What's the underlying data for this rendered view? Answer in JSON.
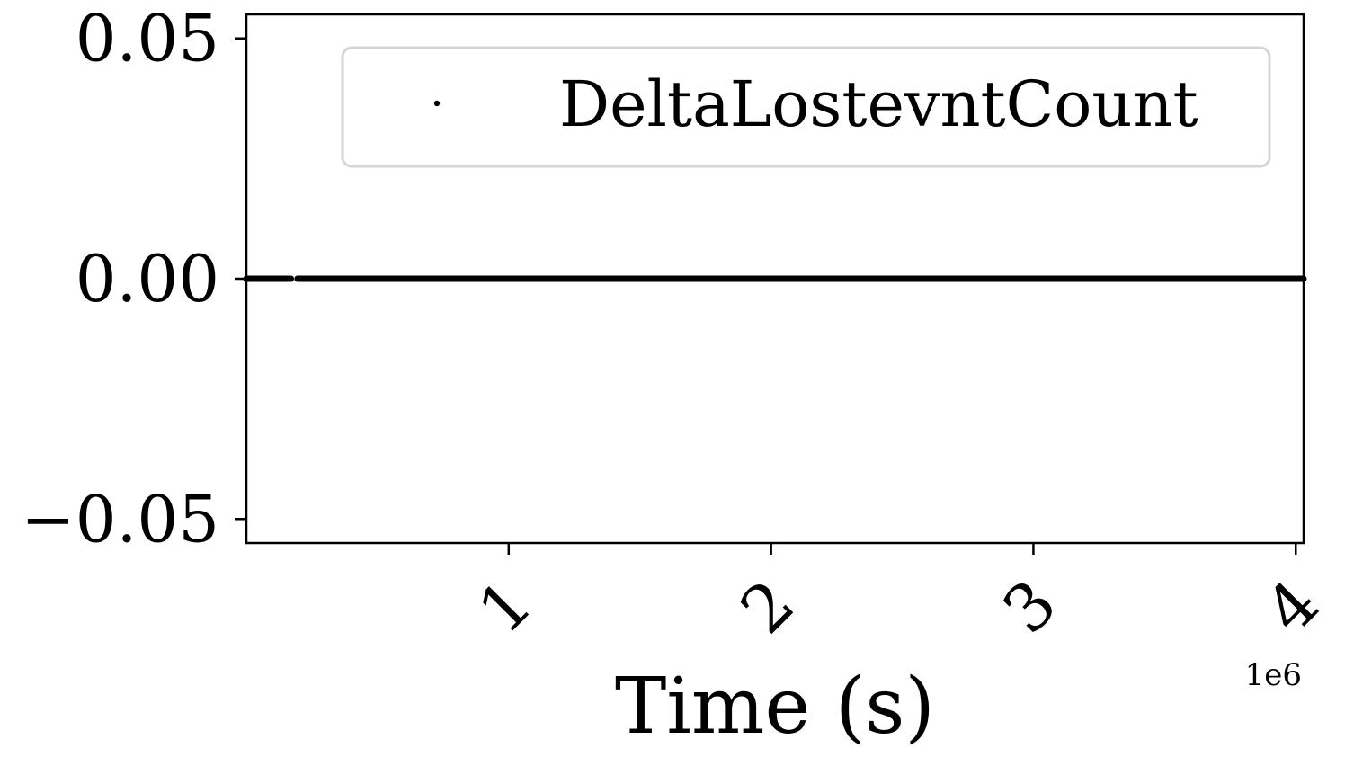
{
  "chart_data": {
    "type": "scatter",
    "title": "",
    "xlabel": "Time (s)",
    "ylabel": "",
    "x_offset_label": "1e6",
    "x_scale_multiplier": 1000000,
    "xlim": [
      0,
      4030000
    ],
    "ylim": [
      -0.055,
      0.055
    ],
    "x_ticks": [
      1,
      2,
      3,
      4
    ],
    "x_tick_labels": [
      "1",
      "2",
      "3",
      "4"
    ],
    "y_ticks": [
      0.05,
      0.0,
      -0.05
    ],
    "y_tick_labels": [
      "0.05",
      "0.00",
      "−0.05"
    ],
    "grid": false,
    "legend_position": "top-right",
    "series": [
      {
        "name": "DeltaLostevntCount",
        "color": "#000000",
        "marker": "point",
        "segments": [
          {
            "x_start": 0,
            "x_end": 170000,
            "y": 0
          },
          {
            "x_start": 195000,
            "x_end": 4030000,
            "y": 0
          }
        ]
      }
    ]
  }
}
